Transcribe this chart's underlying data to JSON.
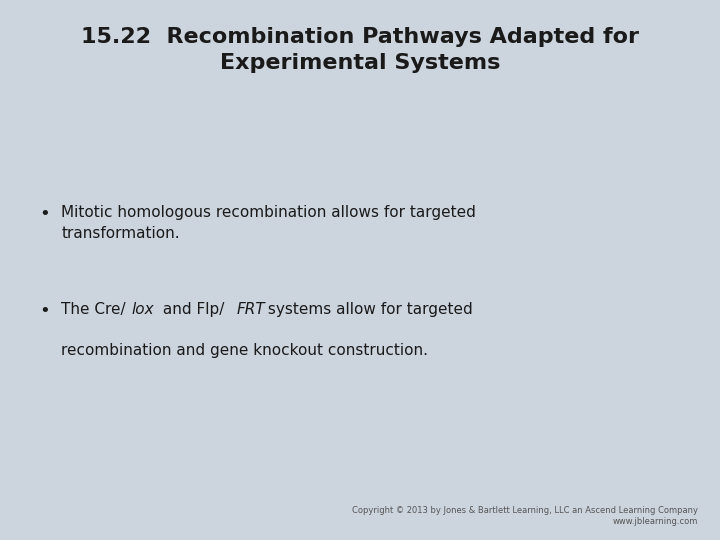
{
  "background_color": "#ccd4de",
  "title_line1": "15.22  Recombination Pathways Adapted for",
  "title_line2": "Experimental Systems",
  "title_fontsize": 16,
  "title_color": "#1a1a1a",
  "bullet_fontsize": 11,
  "bullet_color": "#1a1a1a",
  "copyright_text": "Copyright © 2013 by Jones & Bartlett Learning, LLC an Ascend Learning Company\nwww.jblearning.com",
  "copyright_fontsize": 6,
  "copyright_color": "#555555",
  "bullet1_line1": "Mitotic homologous recombination allows for targeted",
  "bullet1_line2": "transformation.",
  "bullet2_seg1": "The Cre/",
  "bullet2_seg2_italic": "lox",
  "bullet2_seg3": " and Flp/",
  "bullet2_seg4_italic": "FRT",
  "bullet2_seg5": " systems allow for targeted",
  "bullet2_line2": "recombination and gene knockout construction."
}
